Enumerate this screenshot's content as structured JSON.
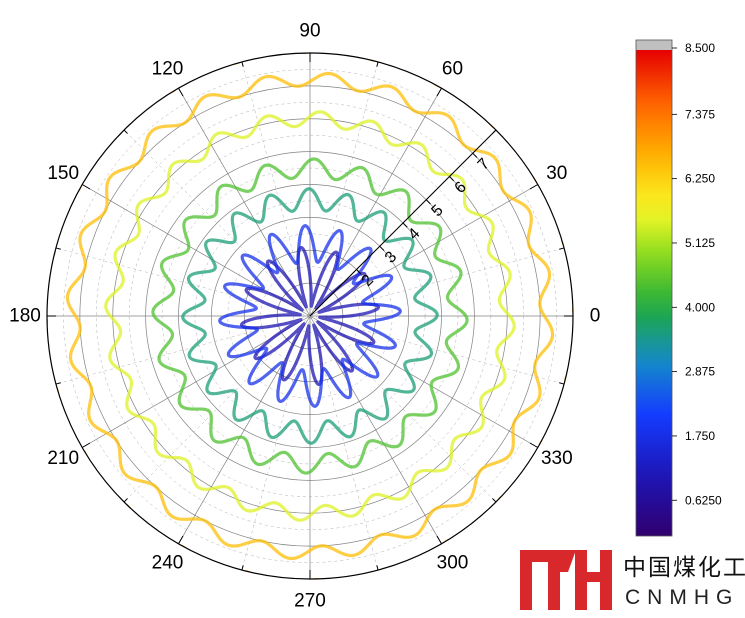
{
  "chart_data": {
    "type": "polar-contour",
    "angle_ticks": [
      "0",
      "30",
      "60",
      "90",
      "120",
      "150",
      "180",
      "210",
      "240",
      "270",
      "300",
      "330"
    ],
    "angle_tick_values": [
      0,
      30,
      60,
      90,
      120,
      150,
      180,
      210,
      240,
      270,
      300,
      330
    ],
    "radial_ticks": [
      "2",
      "3",
      "4",
      "5",
      "6",
      "7"
    ],
    "radial_tick_values": [
      2,
      3,
      4,
      5,
      6,
      7
    ],
    "radial_range": [
      0,
      8
    ],
    "radial_axis_angle": 45,
    "grid": true,
    "colorbar": {
      "min": 0,
      "max": 8.5,
      "ticks": [
        "8.500",
        "7.375",
        "6.250",
        "5.125",
        "4.000",
        "2.875",
        "1.750",
        "0.6250"
      ],
      "tick_values": [
        8.5,
        7.375,
        6.25,
        5.125,
        4.0,
        2.875,
        1.75,
        0.625
      ],
      "overflow_color": "#c0c0c0"
    },
    "contour_levels": [
      {
        "level": 1.0,
        "base_radius": 1.2,
        "amplitude": 0.9,
        "lobes": 12
      },
      {
        "level": 1.8,
        "base_radius": 2.2,
        "amplitude": 0.55,
        "lobes": 16
      },
      {
        "level": 3.6,
        "base_radius": 3.55,
        "amplitude": 0.32,
        "lobes": 20
      },
      {
        "level": 4.4,
        "base_radius": 4.5,
        "amplitude": 0.28,
        "lobes": 20
      },
      {
        "level": 5.5,
        "base_radius": 6.0,
        "amplitude": 0.22,
        "lobes": 24
      },
      {
        "level": 6.5,
        "base_radius": 7.2,
        "amplitude": 0.2,
        "lobes": 24
      },
      {
        "level": 7.0,
        "base_radius": 8.3,
        "amplitude": 0.28,
        "lobes": 24
      }
    ]
  },
  "logo": {
    "chinese": "中国煤化工",
    "english": "CNMHG"
  }
}
